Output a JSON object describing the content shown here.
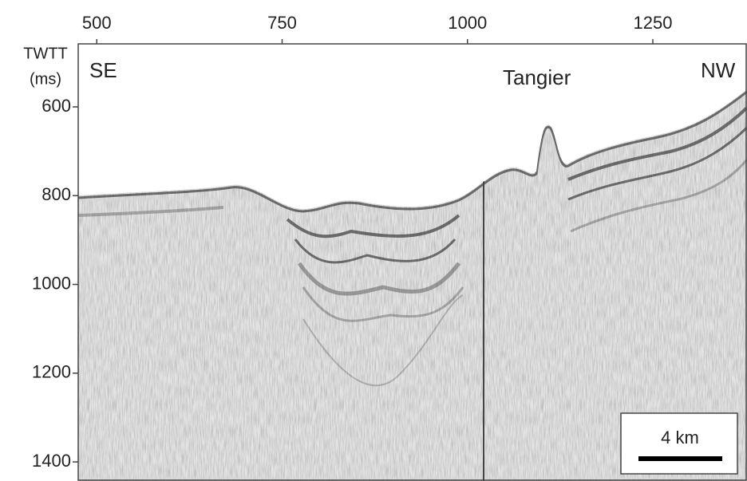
{
  "chart_data": {
    "type": "seismic",
    "xlim": [
      475,
      1377
    ],
    "xticks": [
      500,
      750,
      1000,
      1250
    ],
    "ylim": [
      1443,
      458
    ],
    "yticks": [
      600,
      800,
      1000,
      1200,
      1400
    ],
    "ylabel": [
      "TWTT",
      "(ms)"
    ],
    "annotations": [
      "SE",
      "Tangier",
      "NW"
    ],
    "scale_bar": "4 km"
  }
}
